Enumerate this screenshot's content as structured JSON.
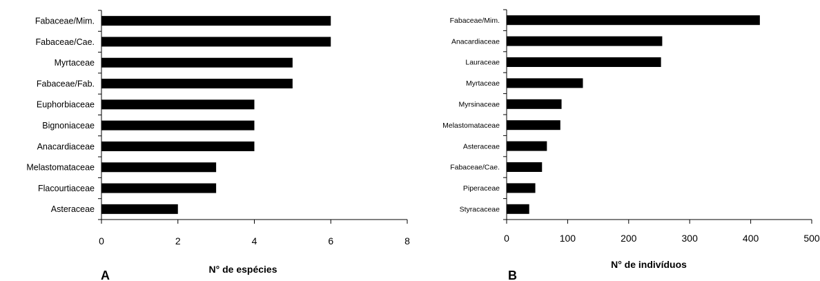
{
  "chart_data": [
    {
      "type": "bar",
      "orientation": "horizontal",
      "panel_label": "A",
      "xlabel": "N° de espécies",
      "ylabel": "",
      "xlim": [
        0,
        8
      ],
      "xticks": [
        0,
        2,
        4,
        6,
        8
      ],
      "grid": false,
      "bar_color": "#000000",
      "categories": [
        "Fabaceae/Mim.",
        "Fabaceae/Cae.",
        "Myrtaceae",
        "Fabaceae/Fab.",
        "Euphorbiaceae",
        "Bignoniaceae",
        "Anacardiaceae",
        "Melastomataceae",
        "Flacourtiaceae",
        "Asteraceae"
      ],
      "values": [
        6,
        6,
        5,
        5,
        4,
        4,
        4,
        3,
        3,
        2
      ]
    },
    {
      "type": "bar",
      "orientation": "horizontal",
      "panel_label": "B",
      "xlabel": "N° de indivíduos",
      "ylabel": "",
      "xlim": [
        0,
        500
      ],
      "xticks": [
        0,
        100,
        200,
        300,
        400,
        500
      ],
      "grid": false,
      "bar_color": "#000000",
      "categories": [
        "Fabaceae/Mim.",
        "Anacardiaceae",
        "Lauraceae",
        "Myrtaceae",
        "Myrsinaceae",
        "Melastomataceae",
        "Asteraceae",
        "Fabaceae/Cae.",
        "Piperaceae",
        "Styracaceae"
      ],
      "values": [
        415,
        255,
        253,
        125,
        90,
        88,
        66,
        58,
        47,
        37
      ]
    }
  ]
}
